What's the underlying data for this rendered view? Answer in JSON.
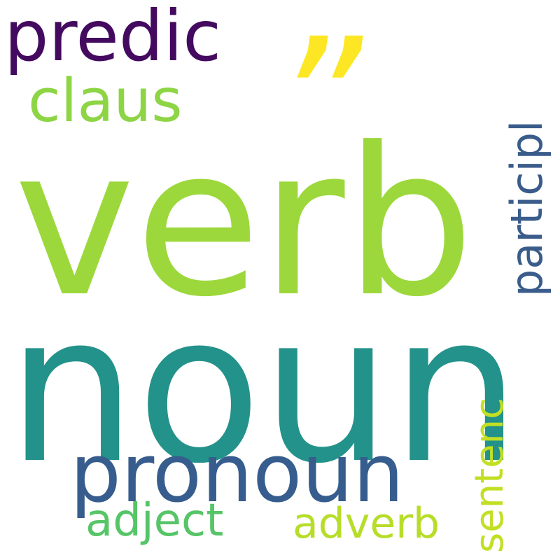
{
  "words": {
    "verb": {
      "text": "verb",
      "color": "#9cd83b"
    },
    "noun": {
      "text": "noun",
      "color": "#23928a"
    },
    "pronoun": {
      "text": "pronoun",
      "color": "#365d8d"
    },
    "predic": {
      "text": "predic",
      "color": "#440a5f"
    },
    "claus": {
      "text": "claus",
      "color": "#8dd544"
    },
    "quote": {
      "text": "”",
      "color": "#fde725"
    },
    "particip": {
      "text": "participl",
      "color": "#3a5c8b"
    },
    "sentenc": {
      "text": "sentenc",
      "color": "#c2df23"
    },
    "adject": {
      "text": "adject",
      "color": "#56c567"
    },
    "adverb": {
      "text": "adverb",
      "color": "#b7dd29"
    }
  }
}
